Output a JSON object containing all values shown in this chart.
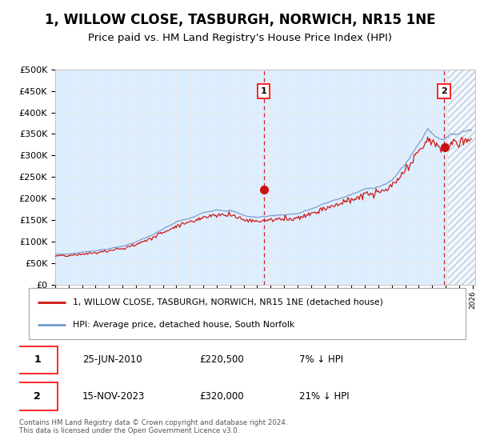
{
  "title": "1, WILLOW CLOSE, TASBURGH, NORWICH, NR15 1NE",
  "subtitle": "Price paid vs. HM Land Registry's House Price Index (HPI)",
  "title_fontsize": 12,
  "subtitle_fontsize": 9.5,
  "bg_color": "#ddeeff",
  "hatch_color": "#aabbcc",
  "grid_color": "#e8e8e8",
  "hpi_color": "#7799cc",
  "price_color": "#cc1111",
  "ylim": [
    0,
    500000
  ],
  "yticks": [
    0,
    50000,
    100000,
    150000,
    200000,
    250000,
    300000,
    350000,
    400000,
    450000,
    500000
  ],
  "sale1_date": 2010.49,
  "sale1_price": 220500,
  "sale1_label": "1",
  "sale2_date": 2023.88,
  "sale2_price": 320000,
  "sale2_label": "2",
  "legend_entry1": "1, WILLOW CLOSE, TASBURGH, NORWICH, NR15 1NE (detached house)",
  "legend_entry2": "HPI: Average price, detached house, South Norfolk",
  "annotation1_date": "25-JUN-2010",
  "annotation1_price": "£220,500",
  "annotation1_hpi": "7% ↓ HPI",
  "annotation2_date": "15-NOV-2023",
  "annotation2_price": "£320,000",
  "annotation2_hpi": "21% ↓ HPI",
  "footer": "Contains HM Land Registry data © Crown copyright and database right 2024.\nThis data is licensed under the Open Government Licence v3.0.",
  "xmin": 1995,
  "xmax": 2026.2,
  "hatch_start": 2024.17
}
